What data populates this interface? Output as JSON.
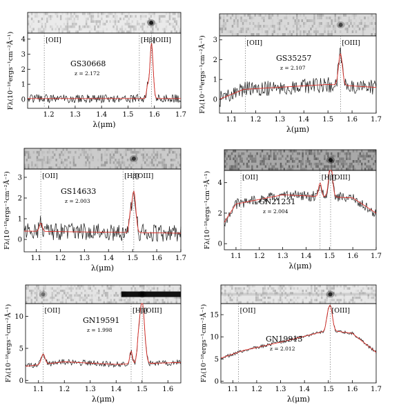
{
  "figure": {
    "ylabel": "Fλ(10⁻¹⁸ergs⁻¹cm⁻²Å⁻¹)",
    "xlabel": "λ(μm)"
  },
  "chart_data": [
    {
      "type": "line",
      "name": "GS30668",
      "redshift_label": "z = 2.172",
      "xlim": [
        1.12,
        1.7
      ],
      "ylim": [
        -0.6,
        4.4
      ],
      "xticks": [
        1.2,
        1.3,
        1.4,
        1.5,
        1.6,
        1.7
      ],
      "yticks": [
        0,
        1,
        2,
        3,
        4
      ],
      "lines": [
        {
          "label": "[OII]",
          "x": 1.183
        },
        {
          "label": "[Hβ]",
          "x": 1.543
        },
        {
          "label": "[OIII]",
          "x": 1.589
        }
      ],
      "continuum": 0.05,
      "noise": 0.28,
      "peaks": [
        {
          "x": 1.589,
          "amp": 3.7,
          "width": 0.006
        },
        {
          "x": 1.574,
          "amp": 0.8,
          "width": 0.004
        }
      ],
      "slope": [
        [
          1.12,
          0.0
        ],
        [
          1.7,
          0.0
        ]
      ],
      "stamp": {
        "shade": 0.08,
        "sources": [
          [
            1.588,
            1.0
          ]
        ]
      }
    },
    {
      "type": "line",
      "name": "GS35257",
      "redshift_label": "z = 2.107",
      "xlim": [
        1.05,
        1.7
      ],
      "ylim": [
        -0.7,
        3.2
      ],
      "xticks": [
        1.1,
        1.2,
        1.3,
        1.4,
        1.5,
        1.6,
        1.7
      ],
      "yticks": [
        0,
        1,
        2,
        3
      ],
      "lines": [
        {
          "label": "[OII]",
          "x": 1.157
        },
        {
          "label": "[OIII]",
          "x": 1.552
        }
      ],
      "continuum": 0.3,
      "noise": 0.4,
      "peaks": [
        {
          "x": 1.552,
          "amp": 1.6,
          "width": 0.008
        }
      ],
      "slope": [
        [
          1.05,
          -0.3
        ],
        [
          1.15,
          0.2
        ],
        [
          1.5,
          0.45
        ],
        [
          1.7,
          0.3
        ]
      ],
      "stamp": {
        "shade": 0.2,
        "sources": [
          [
            1.553,
            0.7
          ]
        ]
      }
    },
    {
      "type": "line",
      "name": "GS14633",
      "redshift_label": "z = 2.003",
      "xlim": [
        1.05,
        1.7
      ],
      "ylim": [
        -0.6,
        3.4
      ],
      "xticks": [
        1.1,
        1.2,
        1.3,
        1.4,
        1.5,
        1.6,
        1.7
      ],
      "yticks": [
        0,
        1,
        2,
        3
      ],
      "lines": [
        {
          "label": "[OII]",
          "x": 1.119
        },
        {
          "label": "[Hβ]",
          "x": 1.46
        },
        {
          "label": "[OIII]",
          "x": 1.505
        }
      ],
      "continuum": 0.2,
      "noise": 0.42,
      "peaks": [
        {
          "x": 1.505,
          "amp": 2.0,
          "width": 0.008
        },
        {
          "x": 1.49,
          "amp": 0.7,
          "width": 0.005
        },
        {
          "x": 1.119,
          "amp": 0.4,
          "width": 0.006
        }
      ],
      "slope": [
        [
          1.05,
          0.2
        ],
        [
          1.7,
          0.1
        ]
      ],
      "stamp": {
        "shade": 0.3,
        "sources": [
          [
            1.505,
            0.8
          ]
        ]
      }
    },
    {
      "type": "line",
      "name": "GN21231",
      "redshift_label": "z = 2.004",
      "xlim": [
        1.05,
        1.7
      ],
      "ylim": [
        -0.4,
        4.8
      ],
      "xticks": [
        1.1,
        1.2,
        1.3,
        1.4,
        1.5,
        1.6,
        1.7
      ],
      "yticks": [
        0,
        2,
        4
      ],
      "lines": [
        {
          "label": "[OII]",
          "x": 1.121
        },
        {
          "label": "[Hβ]",
          "x": 1.46
        },
        {
          "label": "[OIII]",
          "x": 1.505
        }
      ],
      "continuum": 1.4,
      "noise": 0.35,
      "peaks": [
        {
          "x": 1.505,
          "amp": 2.2,
          "width": 0.008
        },
        {
          "x": 1.46,
          "amp": 0.9,
          "width": 0.006
        }
      ],
      "slope": [
        [
          1.05,
          0.0
        ],
        [
          1.1,
          1.2
        ],
        [
          1.2,
          1.5
        ],
        [
          1.3,
          1.8
        ],
        [
          1.6,
          1.6
        ],
        [
          1.7,
          0.6
        ]
      ],
      "stamp": {
        "shade": 0.55,
        "sources": [
          [
            1.505,
            1.0
          ]
        ]
      }
    },
    {
      "type": "line",
      "name": "GN19591",
      "redshift_label": "z = 1.998",
      "xlim": [
        1.05,
        1.65
      ],
      "ylim": [
        -0.4,
        12.0
      ],
      "xticks": [
        1.1,
        1.2,
        1.3,
        1.4,
        1.5,
        1.6
      ],
      "yticks": [
        0,
        5,
        10
      ],
      "lines": [
        {
          "label": "[OII]",
          "x": 1.118
        },
        {
          "label": "[Hβ]",
          "x": 1.458
        },
        {
          "label": "[OIII]",
          "x": 1.501
        }
      ],
      "continuum": 1.4,
      "noise": 0.45,
      "peaks": [
        {
          "x": 1.501,
          "amp": 9.5,
          "width": 0.009
        },
        {
          "x": 1.487,
          "amp": 2.8,
          "width": 0.006
        },
        {
          "x": 1.458,
          "amp": 2.0,
          "width": 0.005
        },
        {
          "x": 1.118,
          "amp": 1.6,
          "width": 0.007
        }
      ],
      "slope": [
        [
          1.05,
          0.8
        ],
        [
          1.2,
          1.5
        ],
        [
          1.4,
          1.1
        ],
        [
          1.65,
          1.4
        ]
      ],
      "stamp": {
        "shade": 0.12,
        "sources": [
          [
            1.118,
            0.5
          ],
          [
            1.501,
            1.0
          ],
          [
            1.43,
            0.3
          ]
        ],
        "bar_from": 1.42
      }
    },
    {
      "type": "line",
      "name": "GN19913",
      "redshift_label": "z = 2.012",
      "xlim": [
        1.05,
        1.7
      ],
      "ylim": [
        -0.4,
        17.5
      ],
      "xticks": [
        1.1,
        1.2,
        1.3,
        1.4,
        1.5,
        1.6,
        1.7
      ],
      "yticks": [
        0,
        5,
        10,
        15
      ],
      "lines": [
        {
          "label": "[OII]",
          "x": 1.124
        },
        {
          "label": "[OIII]",
          "x": 1.508
        }
      ],
      "continuum": 5.0,
      "noise": 0.35,
      "peaks": [
        {
          "x": 1.508,
          "amp": 5.5,
          "width": 0.009
        },
        {
          "x": 1.495,
          "amp": 1.6,
          "width": 0.006
        }
      ],
      "slope": [
        [
          1.05,
          0.2
        ],
        [
          1.15,
          2.0
        ],
        [
          1.3,
          3.8
        ],
        [
          1.45,
          5.8
        ],
        [
          1.5,
          6.5
        ],
        [
          1.6,
          5.8
        ],
        [
          1.7,
          1.5
        ]
      ],
      "stamp": {
        "shade": 0.1,
        "sources": [
          [
            1.508,
            0.9
          ]
        ],
        "faint_band": 0.25
      }
    }
  ]
}
